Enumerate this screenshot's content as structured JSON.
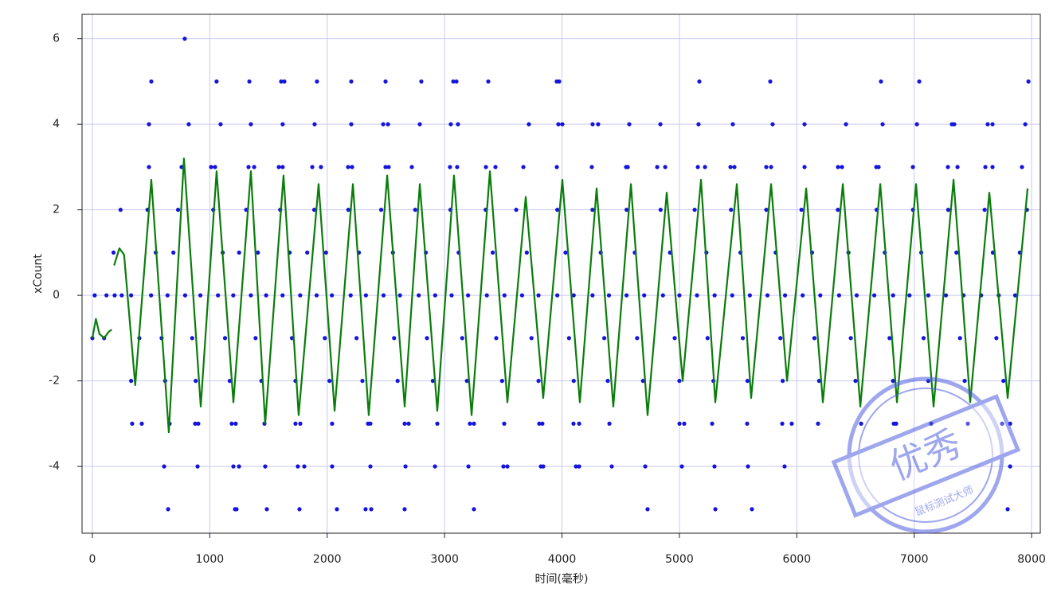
{
  "chart_data": {
    "type": "scatter",
    "x_label": "时间(毫秒)",
    "y_label": "xCount",
    "xlim": [
      -88,
      8074
    ],
    "ylim": [
      -5.56,
      6.57
    ],
    "xticks": [
      0,
      1000,
      2000,
      3000,
      4000,
      5000,
      6000,
      7000,
      8000
    ],
    "yticks": [
      -4,
      -2,
      0,
      2,
      4,
      6
    ],
    "grid": true,
    "series": [
      {
        "type": "scatter",
        "color": "#1414dc",
        "x": [
          787
        ],
        "values": [
          6
        ]
      },
      {
        "type": "scatter",
        "color": "#1414dc",
        "x": [
          502,
          1058,
          1337,
          1608,
          1635,
          1913,
          2205,
          2497,
          2802,
          3074,
          3101,
          3372,
          3955,
          3976,
          5170,
          5774,
          6717,
          7043,
          7973
        ],
        "values": [
          5,
          5,
          5,
          5,
          5,
          5,
          5,
          5,
          5,
          5,
          5,
          5,
          5,
          5,
          5,
          5,
          5,
          5,
          5
        ]
      },
      {
        "type": "scatter",
        "color": "#1414dc",
        "x": [
          482,
          821,
          1092,
          1350,
          1621,
          1893,
          2205,
          2477,
          2518,
          2789,
          3053,
          3114,
          3718,
          3969,
          4003,
          4261,
          4308,
          4573,
          4838,
          5163,
          5455,
          5794,
          6066,
          6419,
          6731,
          7023,
          7321,
          7341,
          7626,
          7667,
          7946
        ],
        "values": [
          4,
          4,
          4,
          4,
          4,
          4,
          4,
          4,
          4,
          4,
          4,
          4,
          4,
          4,
          4,
          4,
          4,
          4,
          4,
          4,
          4,
          4,
          4,
          4,
          4,
          4,
          4,
          4,
          4,
          4,
          4
        ]
      },
      {
        "type": "scatter",
        "color": "#1414dc",
        "x": [
          482,
          760,
          1011,
          1045,
          1330,
          1378,
          1588,
          1621,
          1873,
          1947,
          2178,
          2212,
          2497,
          2524,
          2721,
          3046,
          3107,
          3352,
          3433,
          3671,
          3956,
          4254,
          4546,
          4560,
          4811,
          4879,
          5157,
          5218,
          5435,
          5469,
          5740,
          5781,
          6066,
          6351,
          6385,
          6677,
          6697,
          6989,
          7287,
          7369,
          7606,
          7667,
          7918
        ],
        "values": [
          3,
          3,
          3,
          3,
          3,
          3,
          3,
          3,
          3,
          3,
          3,
          3,
          3,
          3,
          3,
          3,
          3,
          3,
          3,
          3,
          3,
          3,
          3,
          3,
          3,
          3,
          3,
          3,
          3,
          3,
          3,
          3,
          3,
          3,
          3,
          3,
          3,
          3,
          3,
          3,
          3,
          3,
          3
        ]
      },
      {
        "type": "scatter",
        "color": "#1414dc",
        "x": [
          240,
          470,
          730,
          1030,
          1310,
          1600,
          1890,
          2180,
          2460,
          2750,
          3050,
          3350,
          3610,
          3960,
          4260,
          4550,
          4840,
          5130,
          5440,
          5740,
          6040,
          6350,
          6680,
          6990,
          7290,
          7600,
          7960
        ],
        "values": [
          2,
          2,
          2,
          2,
          2,
          2,
          2,
          2,
          2,
          2,
          2,
          2,
          2,
          2,
          2,
          2,
          2,
          2,
          2,
          2,
          2,
          2,
          2,
          2,
          2,
          2,
          2
        ]
      },
      {
        "type": "scatter",
        "color": "#1414dc",
        "x": [
          180,
          540,
          690,
          1110,
          1250,
          1410,
          1680,
          1830,
          1990,
          2270,
          2560,
          2840,
          3120,
          3410,
          3700,
          4030,
          4330,
          4620,
          4920,
          5230,
          5520,
          5820,
          6130,
          6440,
          6750,
          7060,
          7360,
          7670,
          7900
        ],
        "values": [
          1,
          1,
          1,
          1,
          1,
          1,
          1,
          1,
          1,
          1,
          1,
          1,
          1,
          1,
          1,
          1,
          1,
          1,
          1,
          1,
          1,
          1,
          1,
          1,
          1,
          1,
          1,
          1,
          1
        ]
      },
      {
        "type": "scatter",
        "color": "#1414dc",
        "x": [
          20,
          120,
          190,
          250,
          330,
          500,
          640,
          790,
          920,
          1070,
          1200,
          1350,
          1480,
          1620,
          1770,
          1910,
          2040,
          2200,
          2330,
          2480,
          2620,
          2780,
          2920,
          3060,
          3200,
          3360,
          3510,
          3660,
          3800,
          3960,
          4100,
          4260,
          4400,
          4550,
          4700,
          4860,
          5000,
          5150,
          5300,
          5450,
          5600,
          5750,
          5900,
          6050,
          6200,
          6360,
          6510,
          6660,
          6820,
          6960,
          7120,
          7270,
          7420,
          7570,
          7720,
          7860
        ],
        "values": [
          0,
          0,
          0,
          0,
          0,
          0,
          0,
          0,
          0,
          0,
          0,
          0,
          0,
          0,
          0,
          0,
          0,
          0,
          0,
          0,
          0,
          0,
          0,
          0,
          0,
          0,
          0,
          0,
          0,
          0,
          0,
          0,
          0,
          0,
          0,
          0,
          0,
          0,
          0,
          0,
          0,
          0,
          0,
          0,
          0,
          0,
          0,
          0,
          0,
          0,
          0,
          0,
          0,
          0,
          0,
          0
        ]
      },
      {
        "type": "scatter",
        "color": "#1414dc",
        "x": [
          0,
          100,
          400,
          590,
          850,
          1130,
          1390,
          1700,
          1980,
          2250,
          2570,
          2850,
          3150,
          3440,
          3740,
          4060,
          4360,
          4640,
          4960,
          5240,
          5540,
          5860,
          6150,
          6460,
          6790,
          7080,
          7390,
          7700
        ],
        "values": [
          -1,
          -1,
          -1,
          -1,
          -1,
          -1,
          -1,
          -1,
          -1,
          -1,
          -1,
          -1,
          -1,
          -1,
          -1,
          -1,
          -1,
          -1,
          -1,
          -1,
          -1,
          -1,
          -1,
          -1,
          -1,
          -1,
          -1,
          -1
        ]
      },
      {
        "type": "scatter",
        "color": "#1414dc",
        "x": [
          330,
          620,
          880,
          1170,
          1440,
          1730,
          2020,
          2300,
          2600,
          2900,
          3190,
          3490,
          3800,
          4100,
          4390,
          4690,
          5000,
          5290,
          5580,
          5880,
          6190,
          6500,
          6820,
          7120,
          7430,
          7760
        ],
        "values": [
          -2,
          -2,
          -2,
          -2,
          -2,
          -2,
          -2,
          -2,
          -2,
          -2,
          -2,
          -2,
          -2,
          -2,
          -2,
          -2,
          -2,
          -2,
          -2,
          -2,
          -2,
          -2,
          -2,
          -2,
          -2,
          -2
        ]
      },
      {
        "type": "scatter",
        "color": "#1414dc",
        "x": [
          339,
          421,
          658,
          875,
          902,
          1187,
          1221,
          1466,
          1730,
          1771,
          2042,
          2348,
          2368,
          2660,
          2694,
          2938,
          3216,
          3250,
          3508,
          3806,
          3833,
          4098,
          4146,
          4404,
          5001,
          5041,
          5279,
          5577,
          5876,
          5957,
          6181,
          6548,
          6826,
          6846,
          7145,
          7457,
          7749,
          7817
        ],
        "values": [
          -3,
          -3,
          -3,
          -3,
          -3,
          -3,
          -3,
          -3,
          -3,
          -3,
          -3,
          -3,
          -3,
          -3,
          -3,
          -3,
          -3,
          -3,
          -3,
          -3,
          -3,
          -3,
          -3,
          -3,
          -3,
          -3,
          -3,
          -3,
          -3,
          -3,
          -3,
          -3,
          -3,
          -3,
          -3,
          -3,
          -3,
          -3
        ]
      },
      {
        "type": "scatter",
        "color": "#1414dc",
        "x": [
          611,
          896,
          1201,
          1249,
          1472,
          1750,
          1805,
          2042,
          2368,
          2667,
          2918,
          3203,
          3501,
          3535,
          3820,
          3840,
          4119,
          4146,
          4424,
          4709,
          5021,
          5299,
          5584,
          5896,
          7817
        ],
        "values": [
          -4,
          -4,
          -4,
          -4,
          -4,
          -4,
          -4,
          -4,
          -4,
          -4,
          -4,
          -4,
          -4,
          -4,
          -4,
          -4,
          -4,
          -4,
          -4,
          -4,
          -4,
          -4,
          -4,
          -4,
          -4
        ]
      },
      {
        "type": "scatter",
        "color": "#1414dc",
        "x": [
          645,
          1215,
          1228,
          1486,
          1764,
          2083,
          2327,
          2375,
          2660,
          3250,
          4729,
          5306,
          5618,
          7796
        ],
        "values": [
          -5,
          -5,
          -5,
          -5,
          -5,
          -5,
          -5,
          -5,
          -5,
          -5,
          -5,
          -5,
          -5,
          -5
        ]
      },
      {
        "type": "line",
        "color": "#0a7d0a",
        "x": [
          0,
          30,
          60,
          100,
          140,
          165,
          175,
          185,
          230,
          270,
          365,
          502,
          651,
          780,
          923,
          1058,
          1201,
          1350,
          1472,
          1628,
          1757,
          1927,
          2063,
          2219,
          2354,
          2511,
          2660,
          2789,
          2938,
          3080,
          3230,
          3386,
          3535,
          3691,
          3840,
          4003,
          4152,
          4295,
          4437,
          4587,
          4729,
          4892,
          5028,
          5184,
          5306,
          5489,
          5611,
          5781,
          5917,
          6080,
          6222,
          6392,
          6541,
          6711,
          6853,
          7016,
          7165,
          7335,
          7477,
          7640,
          7796,
          7966
        ],
        "values": [
          -1,
          -0.55,
          -0.9,
          -1,
          -0.85,
          -0.8,
          null,
          0.7,
          1.1,
          0.95,
          -2.1,
          2.7,
          -3.2,
          3.2,
          -2.6,
          2.9,
          -2.5,
          2.9,
          -3,
          2.8,
          -2.8,
          2.6,
          -2.7,
          2.6,
          -2.8,
          2.8,
          -2.6,
          2.6,
          -2.7,
          2.8,
          -2.8,
          2.9,
          -2.5,
          2.3,
          -2.4,
          2.7,
          -2.5,
          2.5,
          -2.6,
          2.6,
          -2.8,
          2.4,
          -2,
          2.7,
          -2.5,
          2.6,
          -2.4,
          2.6,
          -2,
          2.5,
          -2.5,
          2.6,
          -2.6,
          2.6,
          -2.5,
          2.6,
          -2.6,
          2.7,
          -2.5,
          2.4,
          -2.4,
          2.5
        ]
      }
    ]
  },
  "watermark": {
    "text": "优秀",
    "subtext": "鼠标测试大师"
  }
}
